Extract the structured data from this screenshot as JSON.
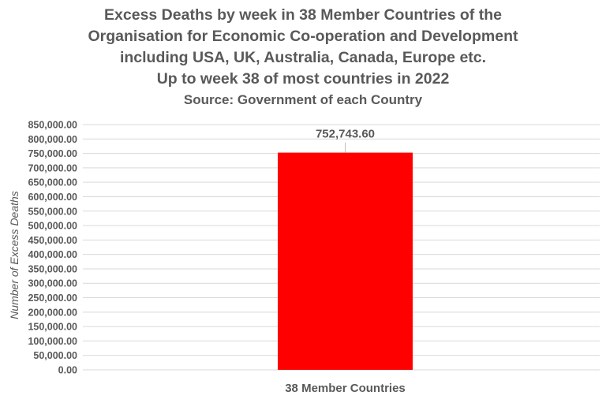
{
  "chart_data": {
    "type": "bar",
    "title_lines": [
      "Excess Deaths by week in 38 Member Countries of the",
      "Organisation for Economic Co-operation and Development",
      "including USA, UK, Australia, Canada, Europe etc.",
      "Up to week 38 of most countries in 2022"
    ],
    "subtitle": "Source: Government of each Country",
    "categories": [
      "38 Member Countries"
    ],
    "values": [
      752743.6
    ],
    "data_labels": [
      "752,743.60"
    ],
    "xlabel": "",
    "ylabel": "Number of Excess Deaths",
    "ylim": [
      0,
      850000
    ],
    "ytick_step": 50000,
    "yticks": [
      "0.00",
      "50,000.00",
      "100,000.00",
      "150,000.00",
      "200,000.00",
      "250,000.00",
      "300,000.00",
      "350,000.00",
      "400,000.00",
      "450,000.00",
      "500,000.00",
      "550,000.00",
      "600,000.00",
      "650,000.00",
      "700,000.00",
      "750,000.00",
      "800,000.00",
      "850,000.00"
    ],
    "grid": true,
    "legend": "none",
    "bar_color": "#ff0000",
    "text_color": "#595959",
    "grid_color": "#d9d9d9"
  }
}
